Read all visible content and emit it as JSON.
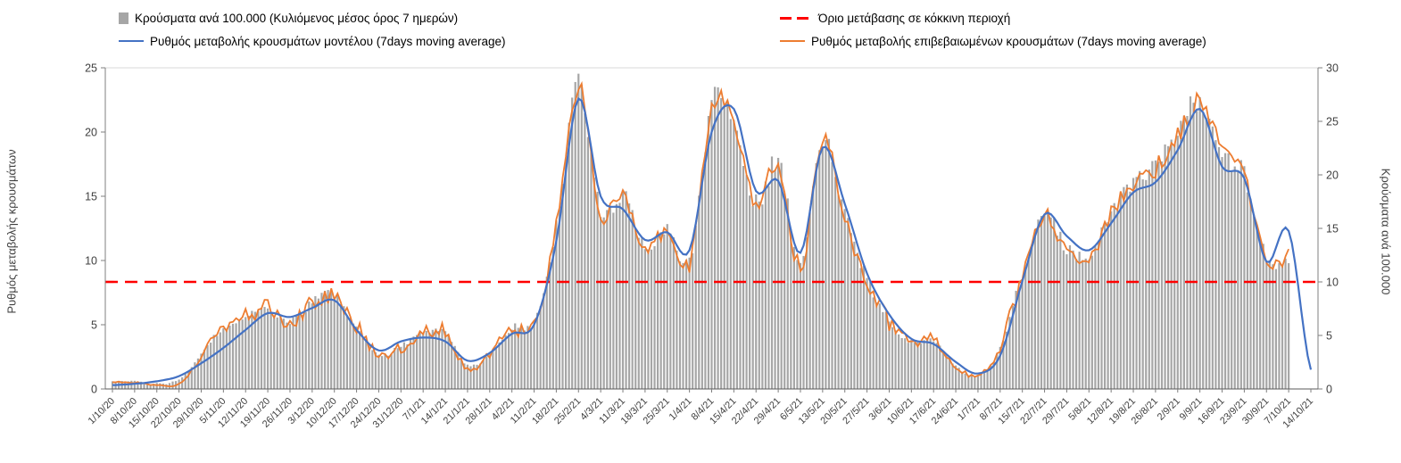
{
  "axes": {
    "left_title": "Ρυθμός μεταβολής κρουσμάτων",
    "right_title": "Κρούσματα ανά 100.000"
  },
  "colors": {
    "bar": "#a6a6a6",
    "model_line": "#4472c4",
    "confirmed_line": "#ed7d31",
    "threshold": "#ff0000",
    "axis_text": "#404040"
  },
  "chart_data": {
    "type": "line",
    "note": "Combo chart: daily gray bars (7-day rolling cases per 100,000, right axis), blue model rate line and orange confirmed rate line (left axis), red dashed threshold at 10 on right axis. Values below are weekly readings at each x tick.",
    "x": [
      "1/10/20",
      "8/10/20",
      "15/10/20",
      "22/10/20",
      "29/10/20",
      "5/11/20",
      "12/11/20",
      "19/11/20",
      "26/11/20",
      "3/12/20",
      "10/12/20",
      "17/12/20",
      "24/12/20",
      "31/12/20",
      "7/1/21",
      "14/1/21",
      "21/1/21",
      "28/1/21",
      "4/2/21",
      "11/2/21",
      "18/2/21",
      "25/2/21",
      "4/3/21",
      "11/3/21",
      "18/3/21",
      "25/3/21",
      "1/4/21",
      "8/4/21",
      "15/4/21",
      "22/4/21",
      "29/4/21",
      "6/5/21",
      "13/5/21",
      "20/5/21",
      "27/5/21",
      "3/6/21",
      "10/6/21",
      "17/6/21",
      "24/6/21",
      "1/7/21",
      "8/7/21",
      "15/7/21",
      "22/7/21",
      "29/7/21",
      "5/8/21",
      "12/8/21",
      "19/8/21",
      "26/8/21",
      "2/9/21",
      "9/9/21",
      "16/9/21",
      "23/9/21",
      "30/9/21",
      "7/10/21",
      "14/10/21"
    ],
    "series": [
      {
        "name": "Κρούσματα ανά 100.000 (Κυλιόμενος μέσος όρος 7 ημερών)",
        "type": "bar",
        "axis": "right",
        "color": "#a6a6a6",
        "values": [
          0.7,
          0.7,
          0.5,
          0.9,
          3.2,
          5.8,
          6.8,
          7.4,
          6.2,
          8.2,
          8.8,
          5.8,
          3.2,
          4.0,
          5.3,
          5.3,
          2.2,
          3.2,
          5.7,
          6.3,
          15.0,
          28.3,
          16.5,
          18.2,
          13.2,
          15.0,
          12.0,
          26.3,
          25.3,
          17.4,
          21.2,
          11.6,
          23.4,
          16.2,
          10.3,
          6.4,
          4.4,
          4.5,
          2.2,
          1.2,
          3.9,
          10.6,
          16.2,
          13.2,
          12.2,
          16.4,
          19.1,
          20.8,
          23.7,
          27.0,
          22.2,
          19.9,
          12.3,
          12.1,
          null
        ]
      },
      {
        "name": "Ρυθμός μεταβολής κρουσμάτων μοντέλου (7days moving average)",
        "type": "line",
        "axis": "left",
        "color": "#4472c4",
        "values": [
          0.3,
          0.4,
          0.6,
          1.0,
          2.0,
          3.2,
          4.6,
          5.9,
          5.6,
          6.3,
          6.9,
          4.6,
          3.0,
          3.7,
          4.0,
          3.7,
          2.2,
          2.8,
          4.3,
          5.0,
          11.5,
          22.6,
          15.0,
          14.0,
          11.6,
          12.2,
          10.8,
          20.0,
          21.8,
          15.4,
          16.2,
          10.6,
          18.8,
          14.4,
          9.0,
          5.8,
          3.9,
          3.5,
          2.1,
          1.2,
          2.6,
          8.4,
          13.6,
          11.9,
          10.8,
          12.9,
          15.3,
          16.1,
          18.6,
          21.8,
          17.3,
          16.4,
          9.9,
          12.3,
          1.5
        ]
      },
      {
        "name": "Ρυθμός μεταβολής επιβεβαιωμένων κρουσμάτων (7days moving average)",
        "type": "line",
        "axis": "left",
        "color": "#ed7d31",
        "values": [
          0.5,
          0.5,
          0.3,
          0.4,
          2.6,
          4.8,
          5.6,
          6.2,
          5.0,
          6.8,
          7.2,
          5.0,
          2.6,
          3.2,
          4.4,
          4.4,
          1.6,
          2.6,
          4.7,
          5.2,
          12.5,
          23.6,
          13.5,
          15.2,
          10.8,
          12.4,
          9.8,
          21.8,
          20.8,
          14.2,
          17.6,
          9.4,
          19.4,
          13.2,
          8.4,
          5.2,
          3.6,
          3.7,
          1.8,
          1.0,
          3.2,
          8.8,
          13.3,
          10.9,
          10.1,
          13.6,
          15.8,
          17.2,
          19.6,
          22.4,
          18.6,
          16.6,
          10.3,
          10.2,
          null
        ]
      },
      {
        "name": "Όριο μετάβασης σε κόκκινη περιοχή",
        "type": "threshold",
        "axis": "right",
        "color": "#ff0000",
        "value": 10
      }
    ],
    "left_axis": {
      "title": "Ρυθμός μεταβολής κρουσμάτων",
      "min": 0,
      "max": 25,
      "ticks": [
        0,
        5,
        10,
        15,
        20,
        25
      ]
    },
    "right_axis": {
      "title": "Κρούσματα ανά 100.000",
      "min": 0,
      "max": 30,
      "ticks": [
        0,
        5,
        10,
        15,
        20,
        25,
        30
      ]
    },
    "legend_position": "top",
    "grid": false
  }
}
